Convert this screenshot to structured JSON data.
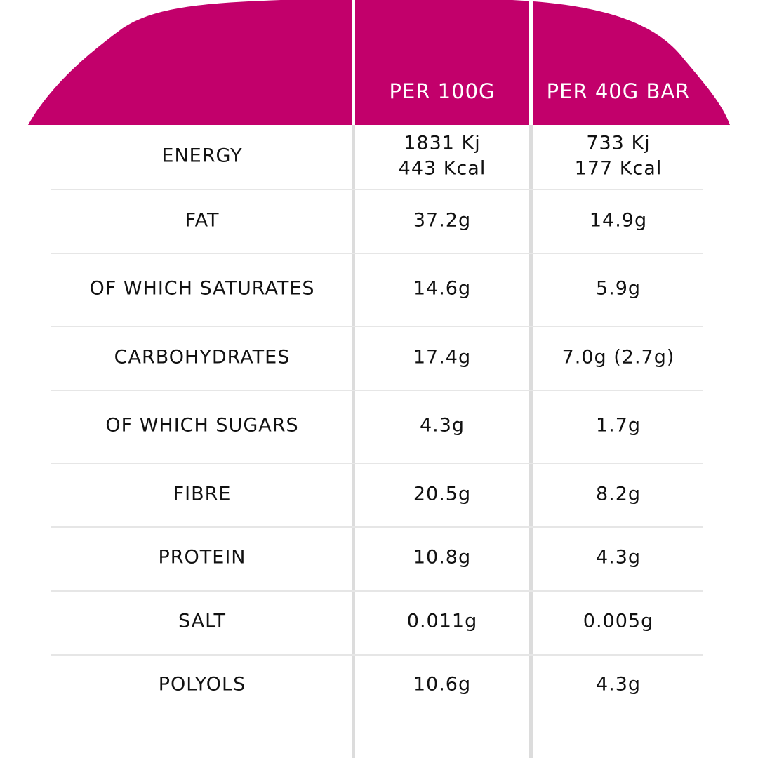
{
  "table": {
    "header": [
      "PER 100G",
      "PER 40G BAR"
    ],
    "rows": [
      [
        "ENERGY",
        [
          "1831 Kj",
          "443 Kcal"
        ],
        [
          "733 Kj",
          "177 Kcal"
        ]
      ],
      [
        "FAT",
        "37.2g",
        "14.9g"
      ],
      [
        "OF WHICH SATURATES",
        "14.6g",
        "5.9g"
      ],
      [
        "CARBOHYDRATES",
        "17.4g",
        "7.0g (2.7g)"
      ],
      [
        "OF WHICH SUGARS",
        "4.3g",
        "1.7g"
      ],
      [
        "FIBRE",
        "20.5g",
        "8.2g"
      ],
      [
        "PROTEIN",
        "10.8g",
        "4.3g"
      ],
      [
        "SALT",
        "0.011g",
        "0.005g"
      ],
      [
        "POLYOLS",
        "10.6g",
        "4.3g"
      ]
    ]
  }
}
